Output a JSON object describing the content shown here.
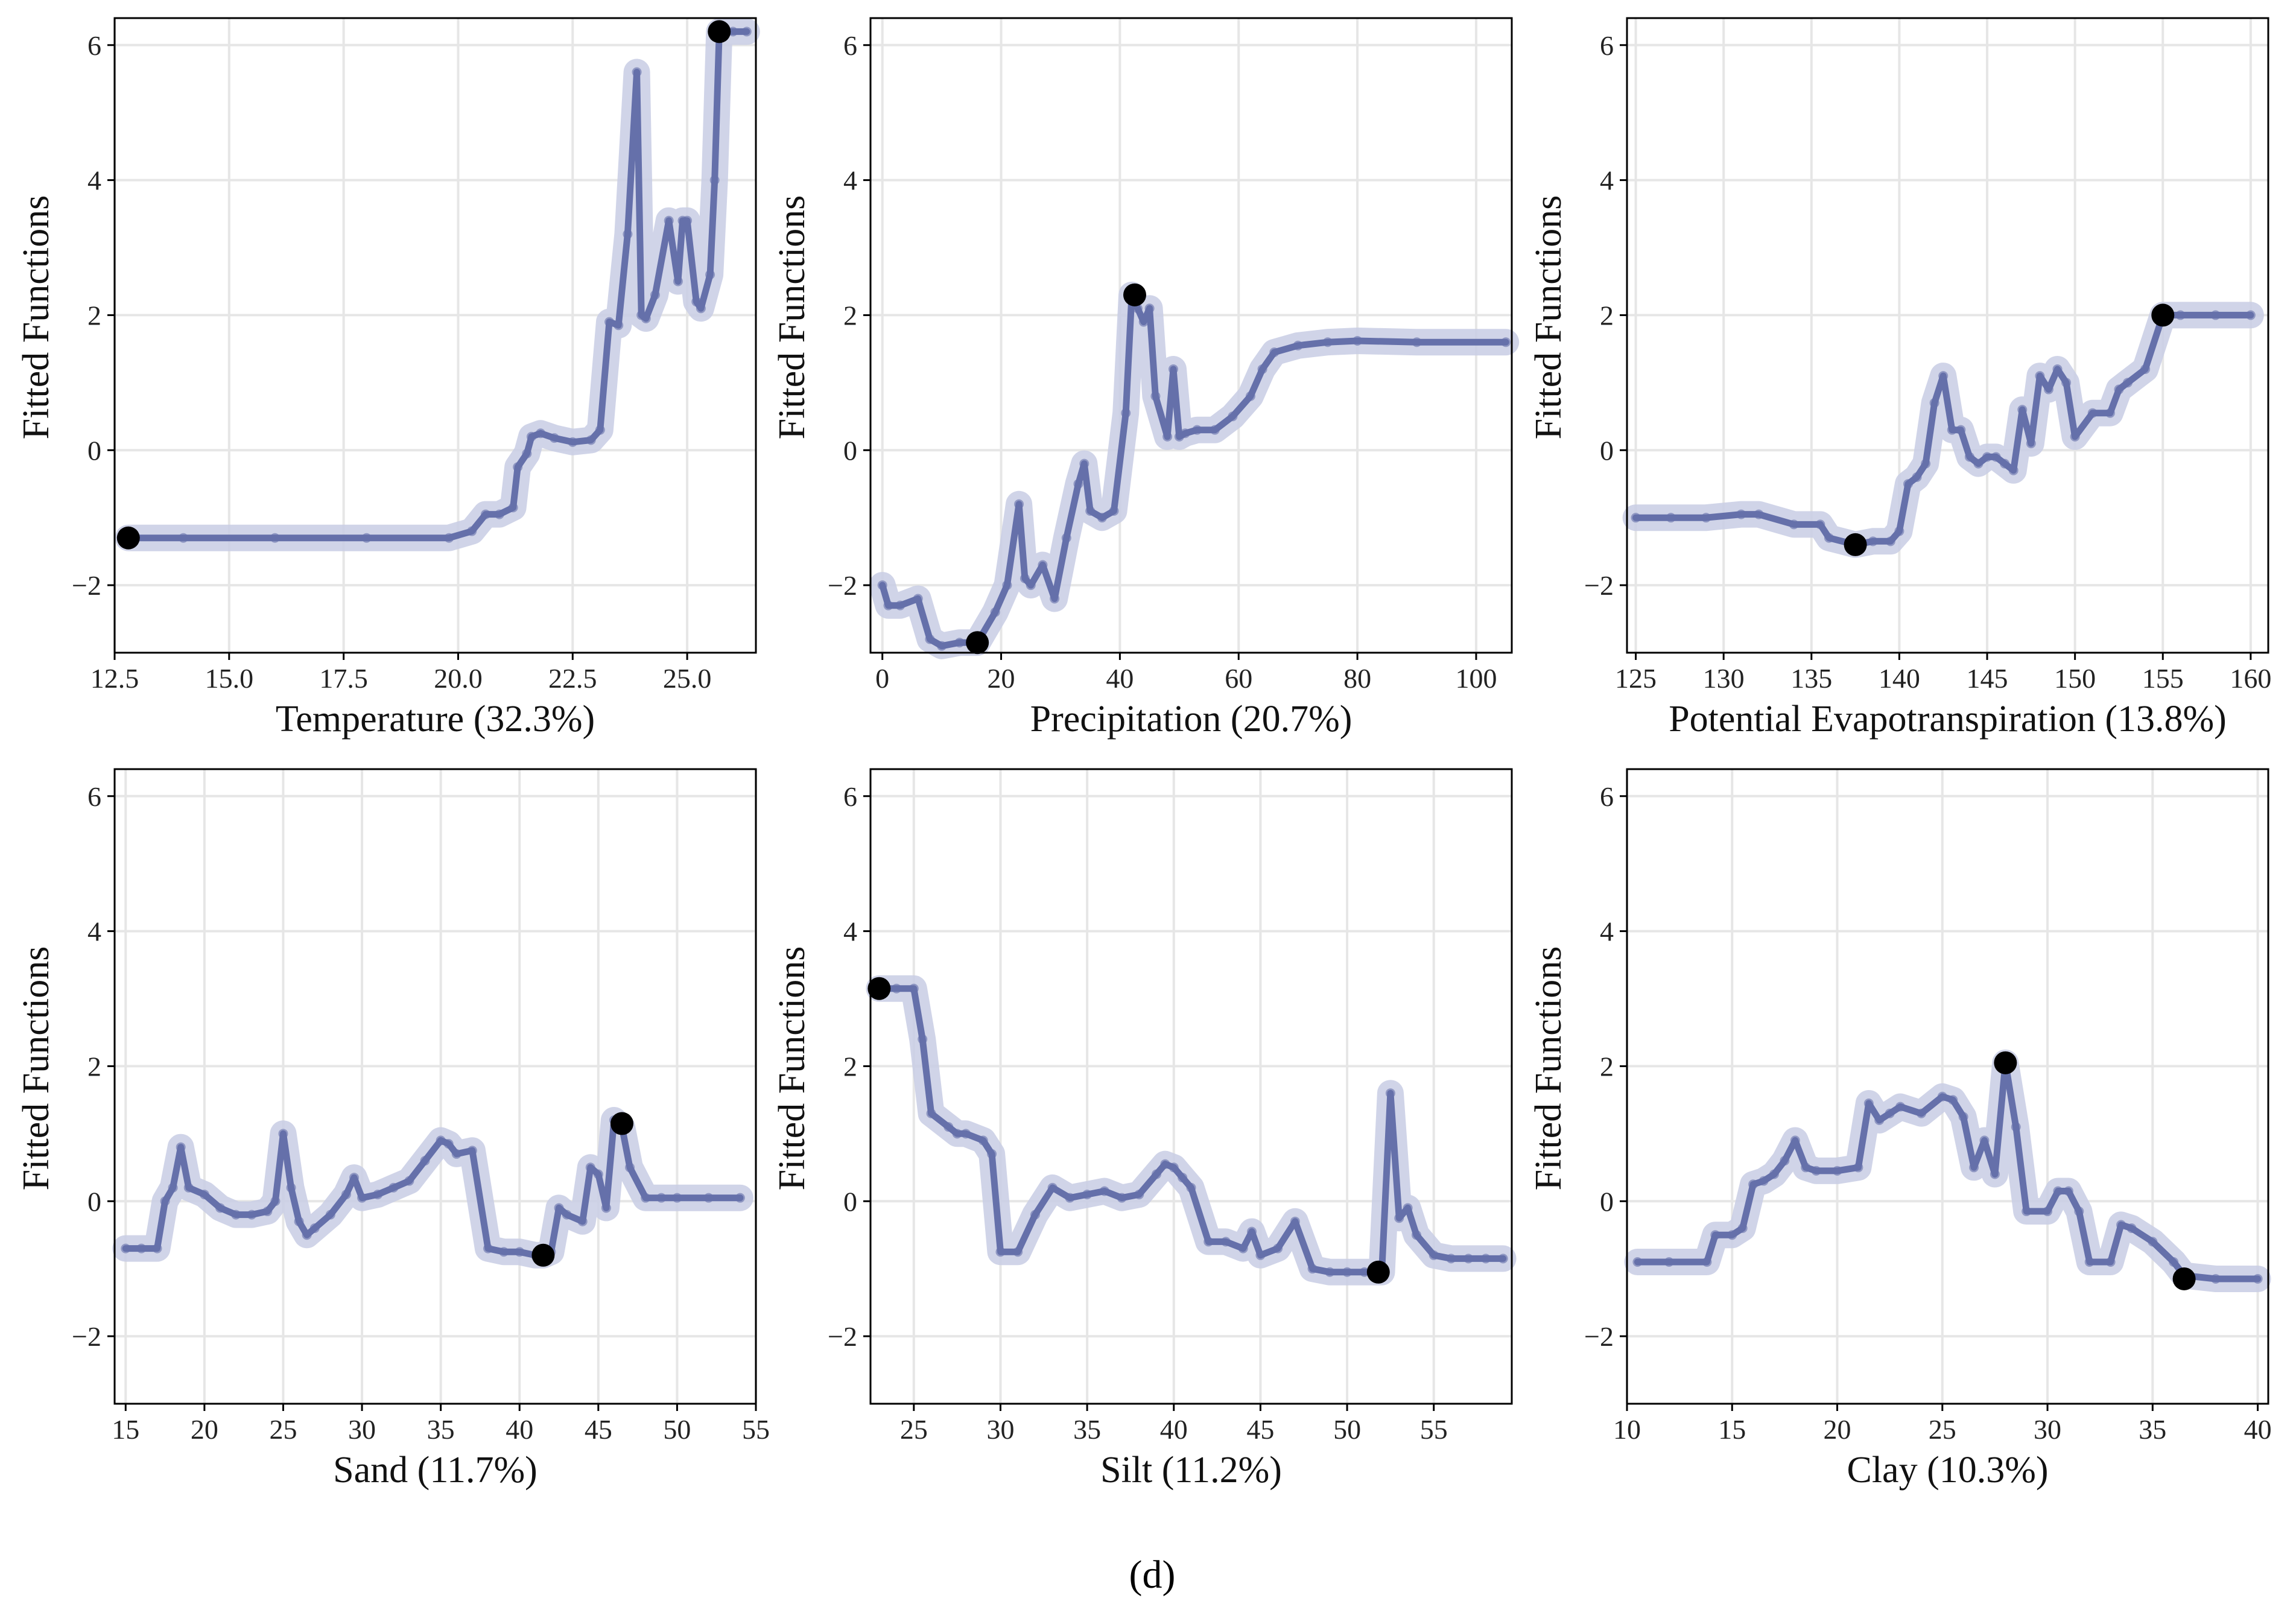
{
  "figure_label": "(d)",
  "colors": {
    "line": "#6570AA",
    "band": "#C8CCE4",
    "grid": "#E6E6E6",
    "marker": "#000000",
    "frame": "#000000"
  },
  "chart_data": [
    {
      "type": "line",
      "title": "",
      "xlabel": "Temperature (32.3%)",
      "ylabel": "Fitted Functions",
      "xlim": [
        12.5,
        26.5
      ],
      "ylim": [
        -3,
        6.4
      ],
      "xticks": [
        12.5,
        15.0,
        17.5,
        20.0,
        22.5,
        25.0
      ],
      "xtick_labels": [
        "12.5",
        "15.0",
        "17.5",
        "20.0",
        "22.5",
        "25.0"
      ],
      "yticks": [
        -2,
        0,
        2,
        4,
        6
      ],
      "ytick_labels": [
        "−2",
        "0",
        "2",
        "4",
        "6"
      ],
      "x": [
        12.8,
        14,
        16,
        18,
        19.8,
        20.3,
        20.6,
        20.9,
        21.2,
        21.3,
        21.5,
        21.6,
        21.8,
        22.1,
        22.5,
        22.9,
        23.1,
        23.3,
        23.5,
        23.7,
        23.9,
        24.0,
        24.1,
        24.3,
        24.6,
        24.8,
        24.9,
        25.0,
        25.2,
        25.3,
        25.5,
        25.6,
        25.7,
        25.8,
        26.0,
        26.3
      ],
      "y": [
        -1.3,
        -1.3,
        -1.3,
        -1.3,
        -1.3,
        -1.2,
        -0.95,
        -0.95,
        -0.85,
        -0.25,
        -0.05,
        0.2,
        0.25,
        0.18,
        0.12,
        0.15,
        0.3,
        1.9,
        1.85,
        3.2,
        5.6,
        2.0,
        1.95,
        2.3,
        3.4,
        2.5,
        3.4,
        3.4,
        2.2,
        2.1,
        2.6,
        4.0,
        6.2,
        6.2,
        6.2,
        6.2
      ],
      "highlight_points": [
        {
          "x": 12.8,
          "y": -1.3
        },
        {
          "x": 25.7,
          "y": 6.2
        }
      ]
    },
    {
      "type": "line",
      "title": "",
      "xlabel": "Precipitation (20.7%)",
      "ylabel": "Fitted Functions",
      "xlim": [
        -2,
        106
      ],
      "ylim": [
        -3,
        6.4
      ],
      "xticks": [
        0,
        20,
        40,
        60,
        80,
        100
      ],
      "xtick_labels": [
        "0",
        "20",
        "40",
        "60",
        "80",
        "100"
      ],
      "yticks": [
        -2,
        0,
        2,
        4,
        6
      ],
      "ytick_labels": [
        "−2",
        "0",
        "2",
        "4",
        "6"
      ],
      "x": [
        0,
        1,
        3,
        6,
        8,
        10,
        13,
        16,
        19,
        21,
        23,
        24,
        25,
        27,
        29,
        31,
        33,
        34,
        35,
        37,
        39,
        41,
        42,
        43,
        44,
        45,
        46,
        48,
        49,
        50,
        51,
        53,
        56,
        59,
        62,
        64,
        66,
        70,
        75,
        80,
        90,
        105
      ],
      "y": [
        -2.0,
        -2.3,
        -2.3,
        -2.2,
        -2.8,
        -2.9,
        -2.85,
        -2.85,
        -2.4,
        -2.0,
        -0.8,
        -1.9,
        -2.0,
        -1.7,
        -2.2,
        -1.3,
        -0.5,
        -0.2,
        -0.9,
        -1.0,
        -0.9,
        0.55,
        2.3,
        2.1,
        1.9,
        2.1,
        0.8,
        0.2,
        1.2,
        0.2,
        0.25,
        0.3,
        0.3,
        0.5,
        0.8,
        1.2,
        1.45,
        1.55,
        1.6,
        1.62,
        1.6,
        1.6
      ],
      "highlight_points": [
        {
          "x": 16,
          "y": -2.85
        },
        {
          "x": 42.5,
          "y": 2.3
        }
      ]
    },
    {
      "type": "line",
      "title": "",
      "xlabel": "Potential Evapotranspiration  (13.8%)",
      "ylabel": "Fitted Functions",
      "xlim": [
        124.5,
        161
      ],
      "ylim": [
        -3,
        6.4
      ],
      "xticks": [
        125,
        130,
        135,
        140,
        145,
        150,
        155,
        160
      ],
      "xtick_labels": [
        "125",
        "130",
        "135",
        "140",
        "145",
        "150",
        "155",
        "160"
      ],
      "yticks": [
        -2,
        0,
        2,
        4,
        6
      ],
      "ytick_labels": [
        "−2",
        "0",
        "2",
        "4",
        "6"
      ],
      "x": [
        125,
        127,
        129,
        131,
        132,
        134,
        135.5,
        136,
        137.5,
        138.5,
        139.5,
        140,
        140.5,
        141,
        141.5,
        142,
        142.5,
        143,
        143.5,
        144,
        144.5,
        145,
        145.5,
        146,
        146.5,
        147,
        147.5,
        148,
        148.5,
        149,
        149.5,
        150,
        151,
        152,
        152.5,
        153,
        154,
        155,
        156,
        158,
        160
      ],
      "y": [
        -1.0,
        -1.0,
        -1.0,
        -0.95,
        -0.95,
        -1.1,
        -1.1,
        -1.3,
        -1.4,
        -1.35,
        -1.35,
        -1.2,
        -0.5,
        -0.4,
        -0.2,
        0.7,
        1.1,
        0.3,
        0.3,
        -0.1,
        -0.2,
        -0.1,
        -0.1,
        -0.2,
        -0.3,
        0.6,
        0.1,
        1.1,
        0.9,
        1.2,
        1.0,
        0.2,
        0.55,
        0.55,
        0.9,
        1.0,
        1.2,
        2.0,
        2.0,
        2.0,
        2.0
      ],
      "highlight_points": [
        {
          "x": 137.5,
          "y": -1.4
        },
        {
          "x": 155,
          "y": 2.0
        }
      ]
    },
    {
      "type": "line",
      "title": "",
      "xlabel": "Sand (11.7%)",
      "ylabel": "Fitted Functions",
      "xlim": [
        14.3,
        55
      ],
      "ylim": [
        -3,
        6.4
      ],
      "xticks": [
        15,
        20,
        25,
        30,
        35,
        40,
        45,
        50,
        55
      ],
      "xtick_labels": [
        "15",
        "20",
        "25",
        "30",
        "35",
        "40",
        "45",
        "50",
        "55"
      ],
      "yticks": [
        -2,
        0,
        2,
        4,
        6
      ],
      "ytick_labels": [
        "−2",
        "0",
        "2",
        "4",
        "6"
      ],
      "x": [
        15,
        16,
        17,
        17.5,
        18,
        18.5,
        19,
        20,
        21,
        22,
        23,
        24,
        24.5,
        25,
        25.5,
        26,
        26.5,
        27,
        28,
        29,
        29.5,
        30,
        31,
        32,
        33,
        34,
        35,
        35.5,
        36,
        37,
        38,
        39,
        40,
        41,
        41.5,
        42,
        42.5,
        43,
        44,
        44.5,
        45,
        45.5,
        46,
        46.5,
        47,
        48,
        49,
        50,
        52,
        54
      ],
      "y": [
        -0.7,
        -0.7,
        -0.7,
        0.0,
        0.2,
        0.8,
        0.2,
        0.1,
        -0.1,
        -0.2,
        -0.2,
        -0.15,
        0.0,
        1.0,
        0.2,
        -0.3,
        -0.5,
        -0.4,
        -0.2,
        0.1,
        0.35,
        0.05,
        0.1,
        0.2,
        0.3,
        0.6,
        0.9,
        0.85,
        0.7,
        0.75,
        -0.7,
        -0.75,
        -0.75,
        -0.8,
        -0.8,
        -0.75,
        -0.1,
        -0.2,
        -0.3,
        0.5,
        0.4,
        -0.1,
        1.2,
        1.1,
        0.5,
        0.05,
        0.05,
        0.05,
        0.05,
        0.05
      ],
      "highlight_points": [
        {
          "x": 41.5,
          "y": -0.8
        },
        {
          "x": 46.5,
          "y": 1.15
        }
      ]
    },
    {
      "type": "line",
      "title": "",
      "xlabel": "Silt (11.2%)",
      "ylabel": "Fitted Functions",
      "xlim": [
        22.5,
        59.5
      ],
      "ylim": [
        -3,
        6.4
      ],
      "xticks": [
        25,
        30,
        35,
        40,
        45,
        50,
        55
      ],
      "xtick_labels": [
        "25",
        "30",
        "35",
        "40",
        "45",
        "50",
        "55"
      ],
      "yticks": [
        -2,
        0,
        2,
        4,
        6
      ],
      "ytick_labels": [
        "−2",
        "0",
        "2",
        "4",
        "6"
      ],
      "x": [
        23,
        24,
        25,
        25.5,
        26,
        27,
        27.5,
        28,
        29,
        29.5,
        30,
        31,
        32,
        33,
        34,
        35,
        36,
        37,
        38,
        39,
        39.5,
        40,
        40.5,
        41,
        42,
        43,
        44,
        44.5,
        45,
        46,
        47,
        48,
        49,
        50,
        51,
        52,
        52.5,
        53,
        53.5,
        54,
        55,
        56,
        57,
        58,
        59
      ],
      "y": [
        3.15,
        3.15,
        3.15,
        2.4,
        1.3,
        1.1,
        1.0,
        1.0,
        0.9,
        0.7,
        -0.75,
        -0.75,
        -0.2,
        0.2,
        0.05,
        0.1,
        0.15,
        0.05,
        0.1,
        0.4,
        0.55,
        0.5,
        0.35,
        0.2,
        -0.6,
        -0.6,
        -0.7,
        -0.45,
        -0.8,
        -0.7,
        -0.3,
        -1.0,
        -1.05,
        -1.05,
        -1.05,
        -1.05,
        1.6,
        -0.25,
        -0.1,
        -0.5,
        -0.8,
        -0.85,
        -0.85,
        -0.85,
        -0.85
      ],
      "highlight_points": [
        {
          "x": 23,
          "y": 3.15
        },
        {
          "x": 51.8,
          "y": -1.05
        }
      ]
    },
    {
      "type": "line",
      "title": "",
      "xlabel": "Clay (10.3%)",
      "ylabel": "Fitted Functions",
      "xlim": [
        10,
        40.5
      ],
      "ylim": [
        -3,
        6.4
      ],
      "xticks": [
        10,
        15,
        20,
        25,
        30,
        35,
        40
      ],
      "xtick_labels": [
        "10",
        "15",
        "20",
        "25",
        "30",
        "35",
        "40"
      ],
      "yticks": [
        -2,
        0,
        2,
        4,
        6
      ],
      "ytick_labels": [
        "−2",
        "0",
        "2",
        "4",
        "6"
      ],
      "x": [
        10.5,
        12,
        13.8,
        14.2,
        15,
        15.5,
        16,
        16.5,
        17,
        17.5,
        18,
        18.5,
        19,
        20,
        21,
        21.5,
        22,
        22.5,
        23,
        24,
        25,
        25.5,
        26,
        26.5,
        27,
        27.5,
        28,
        28.5,
        29,
        30,
        30.5,
        31,
        31.5,
        32,
        33,
        33.5,
        34,
        35,
        36,
        36.5,
        38,
        40
      ],
      "y": [
        -0.9,
        -0.9,
        -0.9,
        -0.5,
        -0.5,
        -0.4,
        0.25,
        0.3,
        0.4,
        0.6,
        0.9,
        0.5,
        0.45,
        0.45,
        0.5,
        1.45,
        1.2,
        1.3,
        1.4,
        1.3,
        1.55,
        1.5,
        1.25,
        0.5,
        0.9,
        0.4,
        2.05,
        1.1,
        -0.15,
        -0.15,
        0.15,
        0.15,
        -0.15,
        -0.9,
        -0.9,
        -0.35,
        -0.4,
        -0.6,
        -0.9,
        -1.1,
        -1.15,
        -1.15
      ],
      "highlight_points": [
        {
          "x": 28,
          "y": 2.05
        },
        {
          "x": 36.5,
          "y": -1.15
        }
      ]
    }
  ]
}
